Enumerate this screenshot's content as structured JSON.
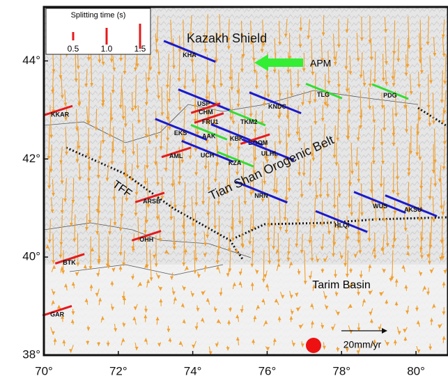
{
  "map": {
    "xlim": [
      70,
      80.86
    ],
    "ylim": [
      38,
      45.1
    ],
    "xticks": [
      {
        "value": 70,
        "label": "70°"
      },
      {
        "value": 72,
        "label": "72°"
      },
      {
        "value": 74,
        "label": "74°"
      },
      {
        "value": 76,
        "label": "76°"
      },
      {
        "value": 78,
        "label": "78°"
      },
      {
        "value": 80,
        "label": "80°"
      }
    ],
    "yticks": [
      {
        "value": 38,
        "label": "38°"
      },
      {
        "value": 40,
        "label": "40°"
      },
      {
        "value": 42,
        "label": "42°"
      },
      {
        "value": 44,
        "label": "44°"
      }
    ],
    "legend": {
      "title": "Splitting time (s)",
      "color": "#e41a1c",
      "items": [
        {
          "value": 0.5,
          "label": "0.5"
        },
        {
          "value": 1,
          "label": "1.0"
        },
        {
          "value": 1.5,
          "label": "1.5"
        }
      ]
    },
    "region_labels": [
      "Kazakh Shield",
      "APM",
      "Tian Shan Orogenic Belt",
      "TFF",
      "Tarim Basin"
    ],
    "scale_label": "20mm/yr",
    "stations": [
      {
        "name": "KHA",
        "lon": 73.73,
        "lat": 44.11,
        "color": "#1a1acc"
      },
      {
        "name": "USP",
        "lon": 74.12,
        "lat": 43.12,
        "color": "#1a1acc"
      },
      {
        "name": "CHM",
        "lon": 74.16,
        "lat": 42.95,
        "color": "#e41a1c"
      },
      {
        "name": "FRU1",
        "lon": 74.25,
        "lat": 42.75,
        "color": "#e41a1c"
      },
      {
        "name": "TKM2",
        "lon": 75.28,
        "lat": 42.75,
        "color": "#33dd33"
      },
      {
        "name": "EKS",
        "lon": 73.5,
        "lat": 42.52,
        "color": "#1a1acc"
      },
      {
        "name": "AAK",
        "lon": 74.25,
        "lat": 42.46,
        "color": "#33dd33"
      },
      {
        "name": "KBK",
        "lon": 75.0,
        "lat": 42.41,
        "color": "#1a1acc"
      },
      {
        "name": "BOOM",
        "lon": 75.49,
        "lat": 42.32,
        "color": "#e41a1c"
      },
      {
        "name": "ULHL",
        "lon": 75.84,
        "lat": 42.1,
        "color": "#1a1acc"
      },
      {
        "name": "AML",
        "lon": 73.37,
        "lat": 42.05,
        "color": "#e41a1c"
      },
      {
        "name": "UCH",
        "lon": 74.21,
        "lat": 42.07,
        "color": "#1a1acc"
      },
      {
        "name": "KZA",
        "lon": 74.96,
        "lat": 41.91,
        "color": "#33dd33"
      },
      {
        "name": "NRN",
        "lon": 75.66,
        "lat": 41.24,
        "color": "#1a1acc"
      },
      {
        "name": "ARSB",
        "lon": 72.66,
        "lat": 41.13,
        "color": "#e41a1c"
      },
      {
        "name": "OHH",
        "lon": 72.57,
        "lat": 40.35,
        "color": "#e41a1c"
      },
      {
        "name": "BTK",
        "lon": 70.51,
        "lat": 39.88,
        "color": "#e41a1c"
      },
      {
        "name": "GAR",
        "lon": 70.17,
        "lat": 38.82,
        "color": "#e41a1c"
      },
      {
        "name": "KKAR",
        "lon": 70.19,
        "lat": 42.9,
        "color": "#e41a1c"
      },
      {
        "name": "TLG",
        "lon": 77.34,
        "lat": 43.3,
        "color": "#33dd33"
      },
      {
        "name": "KNDC",
        "lon": 76.03,
        "lat": 43.06,
        "color": "#1a1acc"
      },
      {
        "name": "PDG",
        "lon": 79.12,
        "lat": 43.29,
        "color": "#33dd33"
      },
      {
        "name": "WUS",
        "lon": 78.84,
        "lat": 41.03,
        "color": "#1a1acc"
      },
      {
        "name": "AKSU",
        "lon": 79.68,
        "lat": 40.96,
        "color": "#1a1acc"
      },
      {
        "name": "HLQI",
        "lon": 77.81,
        "lat": 40.64,
        "color": "#1a1acc"
      }
    ]
  }
}
